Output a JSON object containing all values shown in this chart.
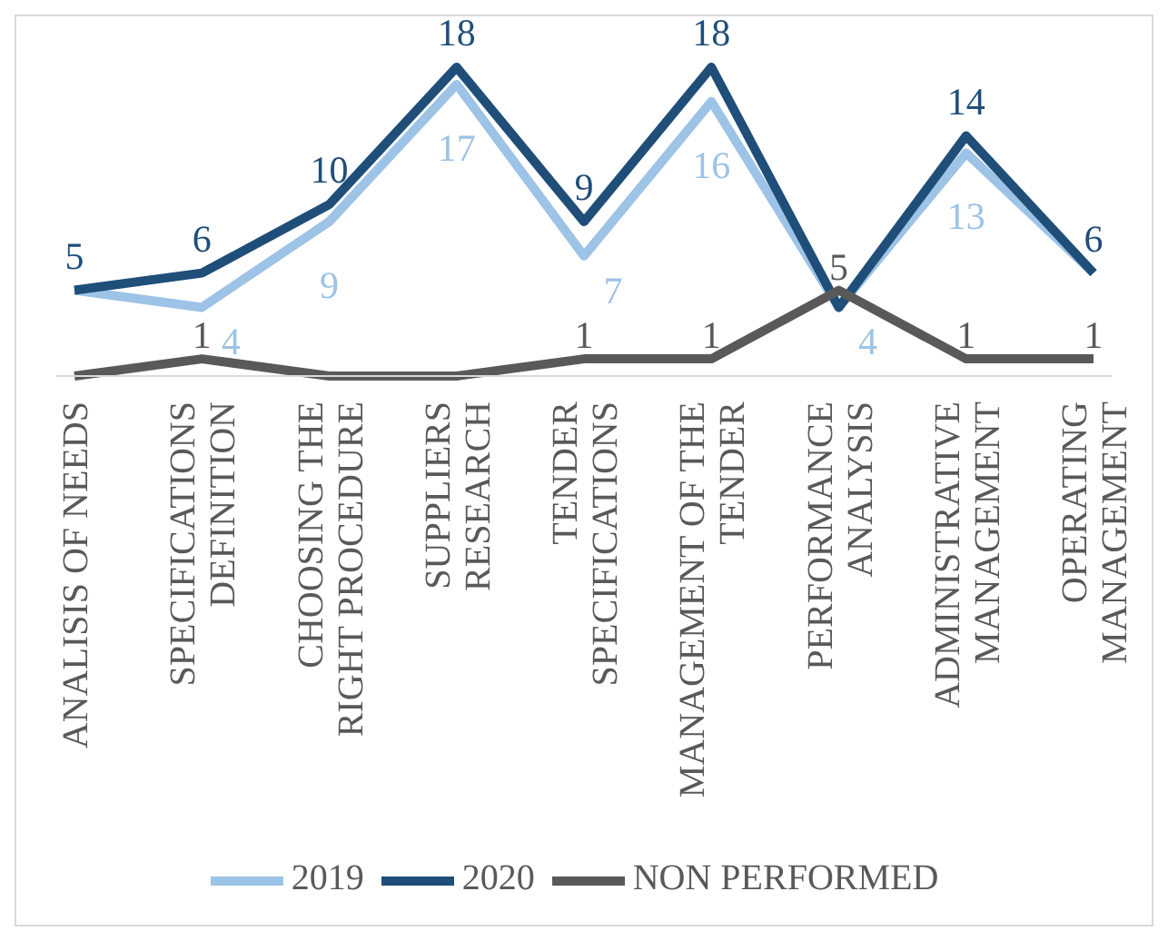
{
  "chart_data": {
    "type": "line",
    "categories": [
      "ANALISIS OF NEEDS",
      "SPECIFICATIONS DEFINITION",
      "CHOOSING THE RIGHT PROCEDURE",
      "SUPPLIERS RESEARCH",
      "TENDER SPECIFICATIONS",
      "MANAGEMENT OF THE TENDER",
      "PERFORMANCE ANALYSIS",
      "ADMINISTRATIVE MANAGEMENT",
      "OPERATING MANAGEMENT"
    ],
    "series": [
      {
        "name": "2019",
        "color": "#9dc3e6",
        "values": [
          5,
          4,
          9,
          17,
          7,
          16,
          4,
          13,
          6
        ],
        "value_labels": [
          null,
          "4",
          "9",
          "17",
          "7",
          "16",
          "4",
          "13",
          null
        ]
      },
      {
        "name": "2020",
        "color": "#1f4e79",
        "values": [
          5,
          6,
          10,
          18,
          9,
          18,
          4,
          14,
          6
        ],
        "value_labels": [
          "5",
          "6",
          "10",
          "18",
          "9",
          "18",
          null,
          "14",
          "6"
        ]
      },
      {
        "name": "NON PERFORMED",
        "color": "#595959",
        "values": [
          0,
          1,
          0,
          0,
          1,
          1,
          5,
          1,
          1
        ],
        "value_labels": [
          null,
          "1",
          null,
          null,
          "1",
          "1",
          "5",
          "1",
          "1"
        ]
      }
    ],
    "legend": "bottom",
    "marker": "none",
    "line_style": "solid",
    "grid": false
  }
}
